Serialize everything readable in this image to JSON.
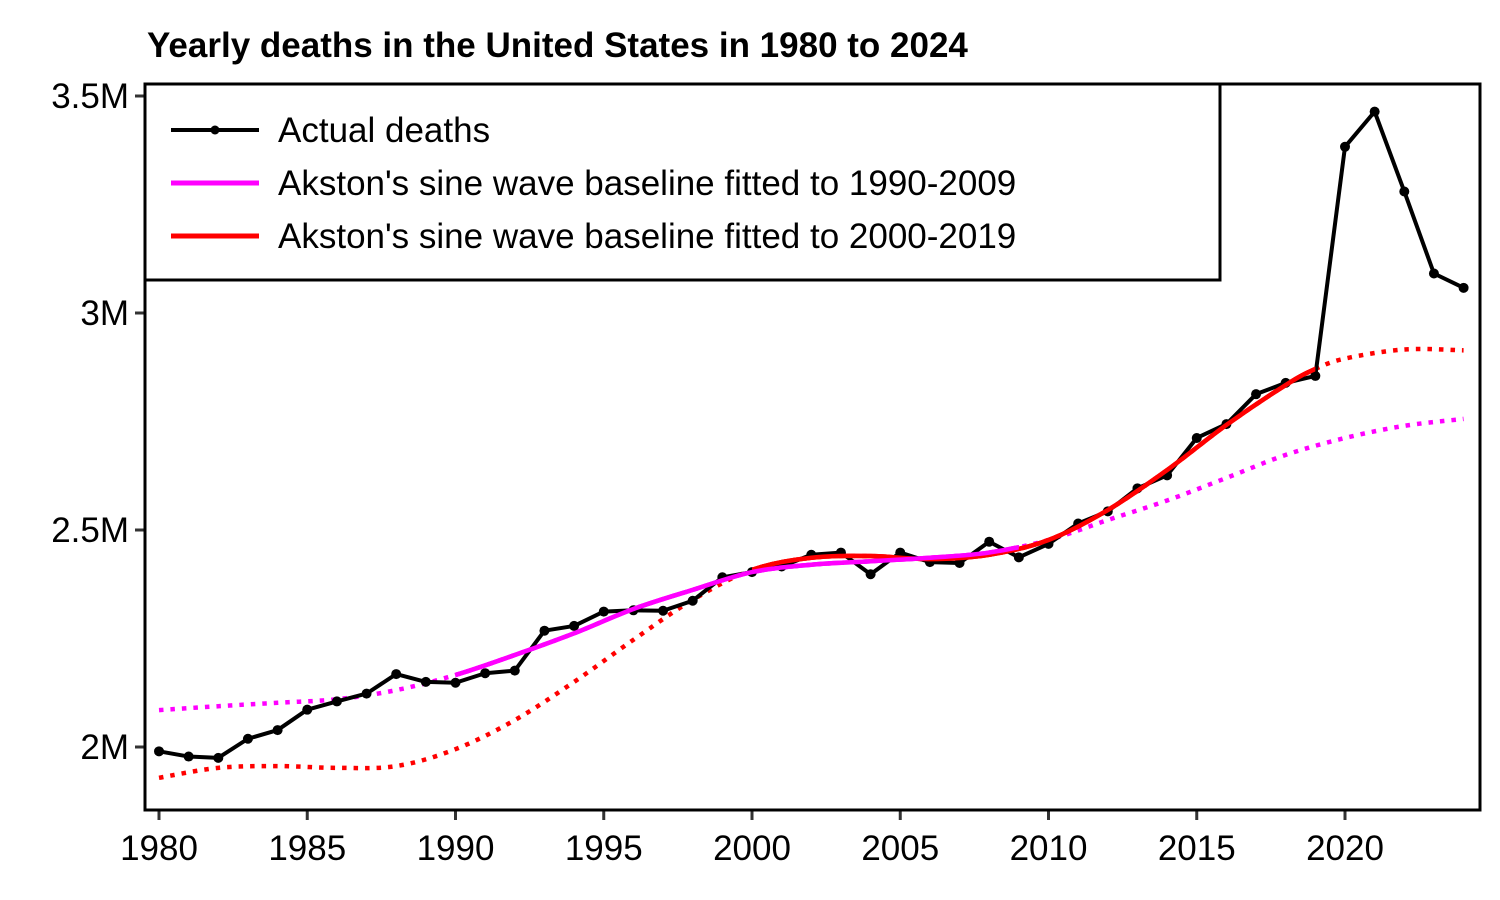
{
  "chart_data": {
    "type": "line",
    "title": "Yearly deaths in the United States in 1980 to 2024",
    "xlabel": "",
    "ylabel": "",
    "xlim": [
      1979.5,
      2024.5
    ],
    "ylim": [
      1870000,
      3540000
    ],
    "grid": false,
    "legend_position": "top-left",
    "x_ticks": [
      1980,
      1985,
      1990,
      1995,
      2000,
      2005,
      2010,
      2015,
      2020
    ],
    "x_tick_labels": [
      "1980",
      "1985",
      "1990",
      "1995",
      "2000",
      "2005",
      "2010",
      "2015",
      "2020"
    ],
    "y_ticks": [
      2000000,
      2500000,
      3000000,
      3500000
    ],
    "y_tick_labels": [
      "2M",
      "2.5M",
      "3M",
      "3.5M"
    ],
    "series": [
      {
        "name": "Actual deaths",
        "color": "#000000",
        "style": "line-points",
        "x": [
          1980,
          1981,
          1982,
          1983,
          1984,
          1985,
          1986,
          1987,
          1988,
          1989,
          1990,
          1991,
          1992,
          1993,
          1994,
          1995,
          1996,
          1997,
          1998,
          1999,
          2000,
          2001,
          2002,
          2003,
          2004,
          2005,
          2006,
          2007,
          2008,
          2009,
          2010,
          2011,
          2012,
          2013,
          2014,
          2015,
          2016,
          2017,
          2018,
          2019,
          2020,
          2021,
          2022,
          2023,
          2024
        ],
        "values": [
          1990000,
          1978000,
          1975000,
          2019000,
          2039000,
          2086000,
          2105000,
          2123000,
          2168000,
          2150000,
          2148000,
          2170000,
          2176000,
          2268000,
          2279000,
          2312000,
          2315000,
          2314000,
          2337000,
          2391000,
          2403000,
          2416000,
          2443000,
          2448000,
          2398000,
          2448000,
          2426000,
          2424000,
          2473000,
          2437000,
          2468000,
          2515000,
          2543000,
          2596000,
          2626000,
          2712000,
          2744000,
          2813000,
          2839000,
          2855000,
          3383000,
          3464000,
          3280000,
          3091000,
          3058000
        ]
      },
      {
        "name": "Akston's sine wave baseline fitted to 1990-2009",
        "color": "#ff00ff",
        "style": "solid-in-fit-dotted-outside",
        "fit_range": [
          1990,
          2009
        ],
        "x": [
          1980,
          1982,
          1984,
          1986,
          1988,
          1990,
          1992,
          1994,
          1996,
          1998,
          2000,
          2002,
          2004,
          2006,
          2008,
          2010,
          2012,
          2014,
          2016,
          2018,
          2020,
          2022,
          2024
        ],
        "values": [
          2085000,
          2094000,
          2102000,
          2110000,
          2131000,
          2166000,
          2212000,
          2262000,
          2318000,
          2362000,
          2403000,
          2420000,
          2428000,
          2436000,
          2448000,
          2477000,
          2523000,
          2568000,
          2620000,
          2673000,
          2712000,
          2740000,
          2756000
        ]
      },
      {
        "name": "Akston's sine wave baseline fitted to 2000-2019",
        "color": "#ff0000",
        "style": "solid-in-fit-dotted-outside",
        "fit_range": [
          2000,
          2019
        ],
        "x": [
          1980,
          1982,
          1984,
          1986,
          1988,
          1990,
          1992,
          1994,
          1996,
          1998,
          2000,
          2002,
          2004,
          2006,
          2008,
          2010,
          2012,
          2014,
          2016,
          2018,
          2019,
          2020,
          2022,
          2024
        ],
        "values": [
          1929000,
          1952000,
          1956000,
          1952000,
          1956000,
          1995000,
          2062000,
          2150000,
          2247000,
          2339000,
          2408000,
          2436000,
          2440000,
          2433000,
          2443000,
          2477000,
          2546000,
          2638000,
          2742000,
          2834000,
          2871000,
          2895000,
          2916000,
          2914000
        ]
      }
    ]
  }
}
